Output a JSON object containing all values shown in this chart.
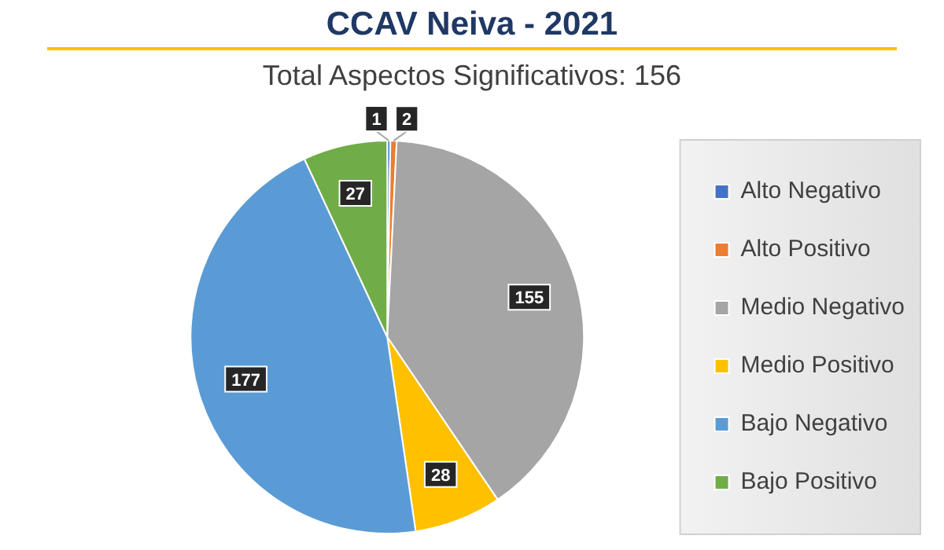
{
  "chart_data": {
    "type": "pie",
    "title": "CCAV Neiva - 2021",
    "subtitle": "Total Aspectos Significativos: 156",
    "categories": [
      "Alto Negativo",
      "Alto Positivo",
      "Medio Negativo",
      "Medio Positivo",
      "Bajo Negativo",
      "Bajo Positivo"
    ],
    "values": [
      1,
      2,
      155,
      28,
      177,
      27
    ],
    "colors": [
      "#4472c4",
      "#ed7d31",
      "#a5a5a5",
      "#ffc000",
      "#5b9bd5",
      "#70ad47"
    ],
    "data_labels": true,
    "legend": "right"
  }
}
